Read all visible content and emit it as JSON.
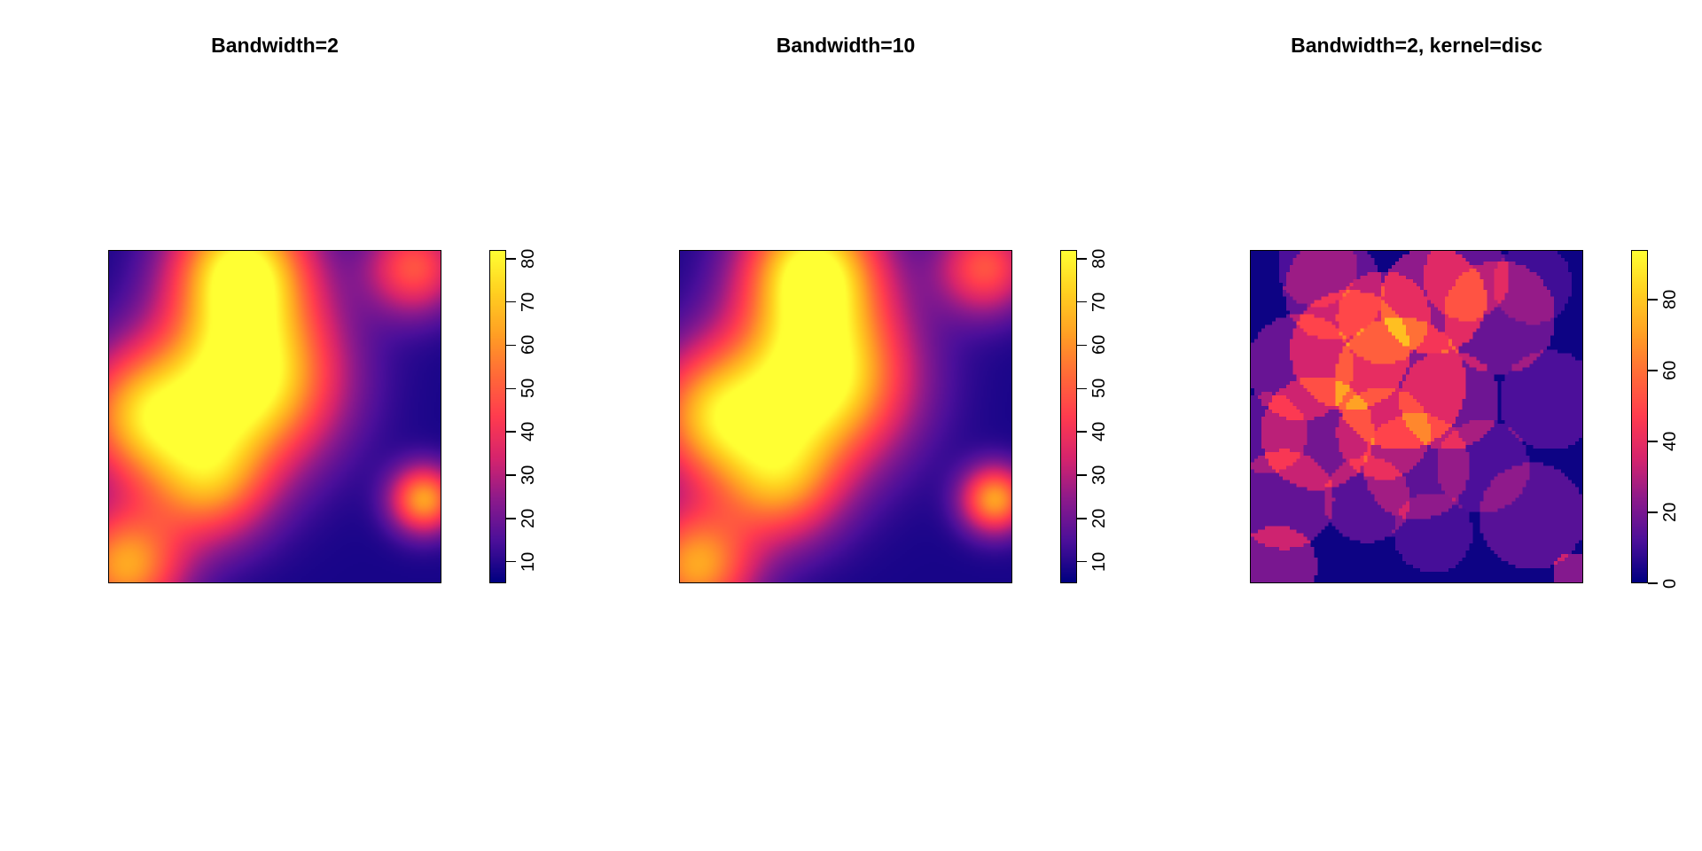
{
  "chart_data": [
    {
      "type": "heatmap",
      "title": "Bandwidth=2",
      "palette": [
        "#000080",
        "#4b0f9a",
        "#8c1a8c",
        "#d6246d",
        "#ff3b4f",
        "#ff6a38",
        "#ffa024",
        "#ffd020",
        "#ffff33"
      ],
      "colorbar": {
        "min": 5,
        "max": 82,
        "ticks": [
          10,
          20,
          30,
          40,
          50,
          60,
          70,
          80
        ]
      },
      "blobs": [
        {
          "x": 0.42,
          "y": 0.62,
          "w": 80,
          "s": 0.18
        },
        {
          "x": 0.4,
          "y": 0.95,
          "w": 70,
          "s": 0.14
        },
        {
          "x": 0.1,
          "y": 0.5,
          "w": 55,
          "s": 0.14
        },
        {
          "x": 0.05,
          "y": 0.05,
          "w": 55,
          "s": 0.12
        },
        {
          "x": 0.95,
          "y": 0.25,
          "w": 55,
          "s": 0.07
        },
        {
          "x": 0.92,
          "y": 0.95,
          "w": 40,
          "s": 0.1
        },
        {
          "x": 0.3,
          "y": 0.3,
          "w": 45,
          "s": 0.13
        }
      ],
      "base": 8,
      "smooth": true
    },
    {
      "type": "heatmap",
      "title": "Bandwidth=10",
      "palette": [
        "#000080",
        "#4b0f9a",
        "#8c1a8c",
        "#d6246d",
        "#ff3b4f",
        "#ff6a38",
        "#ffa024",
        "#ffd020",
        "#ffff33"
      ],
      "colorbar": {
        "min": 5,
        "max": 82,
        "ticks": [
          10,
          20,
          30,
          40,
          50,
          60,
          70,
          80
        ]
      },
      "blobs": [
        {
          "x": 0.42,
          "y": 0.62,
          "w": 80,
          "s": 0.18
        },
        {
          "x": 0.4,
          "y": 0.95,
          "w": 70,
          "s": 0.14
        },
        {
          "x": 0.1,
          "y": 0.5,
          "w": 55,
          "s": 0.14
        },
        {
          "x": 0.05,
          "y": 0.05,
          "w": 55,
          "s": 0.12
        },
        {
          "x": 0.95,
          "y": 0.25,
          "w": 55,
          "s": 0.07
        },
        {
          "x": 0.92,
          "y": 0.95,
          "w": 40,
          "s": 0.1
        },
        {
          "x": 0.3,
          "y": 0.3,
          "w": 45,
          "s": 0.13
        }
      ],
      "base": 8,
      "smooth": true
    },
    {
      "type": "heatmap",
      "title": "Bandwidth=2, kernel=disc",
      "palette": [
        "#000080",
        "#4b0f9a",
        "#8c1a8c",
        "#d6246d",
        "#ff3b4f",
        "#ff6a38",
        "#ffa024",
        "#ffd020",
        "#ffff33"
      ],
      "colorbar": {
        "min": 0,
        "max": 94,
        "ticks": [
          0,
          20,
          40,
          60,
          80
        ]
      },
      "discs": [
        {
          "x": 0.55,
          "y": 0.85,
          "r": 0.16,
          "v": 22
        },
        {
          "x": 0.45,
          "y": 0.6,
          "r": 0.2,
          "v": 20
        },
        {
          "x": 0.3,
          "y": 0.7,
          "r": 0.18,
          "v": 18
        },
        {
          "x": 0.2,
          "y": 0.45,
          "r": 0.17,
          "v": 17
        },
        {
          "x": 0.6,
          "y": 0.55,
          "r": 0.15,
          "v": 16
        },
        {
          "x": 0.75,
          "y": 0.8,
          "r": 0.17,
          "v": 15
        },
        {
          "x": 0.4,
          "y": 0.8,
          "r": 0.14,
          "v": 16
        },
        {
          "x": 0.25,
          "y": 0.88,
          "r": 0.15,
          "v": 14
        },
        {
          "x": 0.15,
          "y": 0.65,
          "r": 0.16,
          "v": 15
        },
        {
          "x": 0.5,
          "y": 0.35,
          "r": 0.16,
          "v": 13
        },
        {
          "x": 0.7,
          "y": 0.35,
          "r": 0.14,
          "v": 10
        },
        {
          "x": 0.85,
          "y": 0.2,
          "r": 0.16,
          "v": 12
        },
        {
          "x": 0.1,
          "y": 0.25,
          "r": 0.15,
          "v": 14
        },
        {
          "x": 0.35,
          "y": 0.25,
          "r": 0.13,
          "v": 12
        },
        {
          "x": 0.08,
          "y": 0.05,
          "r": 0.12,
          "v": 18
        },
        {
          "x": 0.9,
          "y": 0.55,
          "r": 0.15,
          "v": 10
        },
        {
          "x": 0.65,
          "y": 0.92,
          "r": 0.13,
          "v": 14
        },
        {
          "x": 0.2,
          "y": 0.95,
          "r": 0.12,
          "v": 10
        },
        {
          "x": 0.85,
          "y": 0.9,
          "r": 0.12,
          "v": 8
        },
        {
          "x": 0.55,
          "y": 0.15,
          "r": 0.12,
          "v": 9
        },
        {
          "x": 0.05,
          "y": 0.45,
          "r": 0.12,
          "v": 12
        },
        {
          "x": 0.4,
          "y": 0.45,
          "r": 0.14,
          "v": 14
        },
        {
          "x": 0.97,
          "y": 0.03,
          "r": 0.06,
          "v": 20
        }
      ],
      "base": 2,
      "smooth": false
    }
  ]
}
